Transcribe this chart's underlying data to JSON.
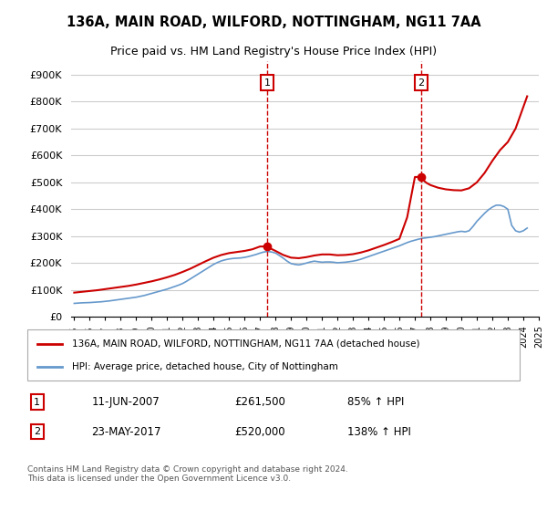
{
  "title": "136A, MAIN ROAD, WILFORD, NOTTINGHAM, NG11 7AA",
  "subtitle": "Price paid vs. HM Land Registry's House Price Index (HPI)",
  "ylabel": "",
  "ylim": [
    0,
    950000
  ],
  "yticks": [
    0,
    100000,
    200000,
    300000,
    400000,
    500000,
    600000,
    700000,
    800000,
    900000
  ],
  "ytick_labels": [
    "£0",
    "£100K",
    "£200K",
    "£300K",
    "£400K",
    "£500K",
    "£600K",
    "£700K",
    "£800K",
    "£900K"
  ],
  "background_color": "#ffffff",
  "plot_bg_color": "#ffffff",
  "grid_color": "#cccccc",
  "sale1_date": "11-JUN-2007",
  "sale1_price": "£261,500",
  "sale1_hpi": "85% ↑ HPI",
  "sale2_date": "23-MAY-2017",
  "sale2_price": "£520,000",
  "sale2_hpi": "138% ↑ HPI",
  "legend_label1": "136A, MAIN ROAD, WILFORD, NOTTINGHAM, NG11 7AA (detached house)",
  "legend_label2": "HPI: Average price, detached house, City of Nottingham",
  "footer": "Contains HM Land Registry data © Crown copyright and database right 2024.\nThis data is licensed under the Open Government Licence v3.0.",
  "line1_color": "#cc0000",
  "line2_color": "#6699cc",
  "marker1_color": "#cc0000",
  "vline_color": "#cc0000",
  "annotation_box_color": "#cc0000",
  "hpi_dates": [
    1995.0,
    1995.25,
    1995.5,
    1995.75,
    1996.0,
    1996.25,
    1996.5,
    1996.75,
    1997.0,
    1997.25,
    1997.5,
    1997.75,
    1998.0,
    1998.25,
    1998.5,
    1998.75,
    1999.0,
    1999.25,
    1999.5,
    1999.75,
    2000.0,
    2000.25,
    2000.5,
    2000.75,
    2001.0,
    2001.25,
    2001.5,
    2001.75,
    2002.0,
    2002.25,
    2002.5,
    2002.75,
    2003.0,
    2003.25,
    2003.5,
    2003.75,
    2004.0,
    2004.25,
    2004.5,
    2004.75,
    2005.0,
    2005.25,
    2005.5,
    2005.75,
    2006.0,
    2006.25,
    2006.5,
    2006.75,
    2007.0,
    2007.25,
    2007.5,
    2007.75,
    2008.0,
    2008.25,
    2008.5,
    2008.75,
    2009.0,
    2009.25,
    2009.5,
    2009.75,
    2010.0,
    2010.25,
    2010.5,
    2010.75,
    2011.0,
    2011.25,
    2011.5,
    2011.75,
    2012.0,
    2012.25,
    2012.5,
    2012.75,
    2013.0,
    2013.25,
    2013.5,
    2013.75,
    2014.0,
    2014.25,
    2014.5,
    2014.75,
    2015.0,
    2015.25,
    2015.5,
    2015.75,
    2016.0,
    2016.25,
    2016.5,
    2016.75,
    2017.0,
    2017.25,
    2017.5,
    2017.75,
    2018.0,
    2018.25,
    2018.5,
    2018.75,
    2019.0,
    2019.25,
    2019.5,
    2019.75,
    2020.0,
    2020.25,
    2020.5,
    2020.75,
    2021.0,
    2021.25,
    2021.5,
    2021.75,
    2022.0,
    2022.25,
    2022.5,
    2022.75,
    2023.0,
    2023.25,
    2023.5,
    2023.75,
    2024.0,
    2024.25
  ],
  "hpi_values": [
    50000,
    51000,
    52000,
    52500,
    53000,
    54000,
    55000,
    56000,
    57500,
    59000,
    61000,
    63000,
    65000,
    67000,
    69000,
    71000,
    73000,
    76000,
    79000,
    83000,
    87000,
    91000,
    95000,
    99000,
    103000,
    108000,
    113000,
    118000,
    124000,
    132000,
    141000,
    150000,
    159000,
    168000,
    177000,
    186000,
    195000,
    202000,
    208000,
    212000,
    215000,
    217000,
    218000,
    219000,
    221000,
    224000,
    228000,
    232000,
    237000,
    241000,
    243000,
    241000,
    237000,
    228000,
    218000,
    207000,
    198000,
    195000,
    193000,
    196000,
    200000,
    204000,
    207000,
    205000,
    203000,
    204000,
    204000,
    203000,
    201000,
    202000,
    203000,
    205000,
    207000,
    210000,
    214000,
    219000,
    224000,
    229000,
    234000,
    239000,
    244000,
    249000,
    254000,
    259000,
    264000,
    270000,
    276000,
    281000,
    285000,
    289000,
    292000,
    294000,
    296000,
    298000,
    301000,
    304000,
    307000,
    310000,
    313000,
    316000,
    318000,
    316000,
    320000,
    336000,
    355000,
    370000,
    385000,
    398000,
    408000,
    415000,
    415000,
    410000,
    400000,
    340000,
    320000,
    315000,
    320000,
    330000
  ],
  "property_dates": [
    1995.0,
    1995.5,
    1996.0,
    1996.5,
    1997.0,
    1997.5,
    1998.0,
    1998.5,
    1999.0,
    1999.5,
    2000.0,
    2000.5,
    2001.0,
    2001.5,
    2002.0,
    2002.5,
    2003.0,
    2003.5,
    2004.0,
    2004.5,
    2005.0,
    2005.5,
    2006.0,
    2006.5,
    2007.0,
    2007.25,
    2007.5,
    2007.75,
    2008.0,
    2008.5,
    2009.0,
    2009.5,
    2010.0,
    2010.5,
    2011.0,
    2011.5,
    2012.0,
    2012.5,
    2013.0,
    2013.5,
    2014.0,
    2014.5,
    2015.0,
    2015.5,
    2016.0,
    2016.5,
    2017.0,
    2017.25,
    2017.5,
    2017.75,
    2018.0,
    2018.5,
    2019.0,
    2019.5,
    2020.0,
    2020.5,
    2021.0,
    2021.5,
    2022.0,
    2022.5,
    2023.0,
    2023.5,
    2024.0,
    2024.25
  ],
  "property_values": [
    90000,
    93000,
    96000,
    99000,
    103000,
    107000,
    111000,
    115000,
    120000,
    126000,
    132000,
    139000,
    147000,
    156000,
    167000,
    179000,
    193000,
    207000,
    220000,
    230000,
    237000,
    241000,
    245000,
    251000,
    261500,
    261500,
    258000,
    252000,
    245000,
    230000,
    220000,
    218000,
    222000,
    228000,
    232000,
    232000,
    229000,
    230000,
    233000,
    239000,
    247000,
    257000,
    267000,
    278000,
    290000,
    370000,
    520000,
    520000,
    510000,
    498000,
    490000,
    480000,
    474000,
    471000,
    470000,
    478000,
    500000,
    535000,
    580000,
    620000,
    650000,
    700000,
    780000,
    820000
  ],
  "vline1_x": 2007.46,
  "vline2_x": 2017.39,
  "marker1_x": 2007.46,
  "marker1_y": 261500,
  "marker2_x": 2017.39,
  "marker2_y": 520000,
  "xlim": [
    1994.8,
    2024.8
  ],
  "xtick_years": [
    1995,
    1996,
    1997,
    1998,
    1999,
    2000,
    2001,
    2002,
    2003,
    2004,
    2005,
    2006,
    2007,
    2008,
    2009,
    2010,
    2011,
    2012,
    2013,
    2014,
    2015,
    2016,
    2017,
    2018,
    2019,
    2020,
    2021,
    2022,
    2023,
    2024,
    2025
  ]
}
